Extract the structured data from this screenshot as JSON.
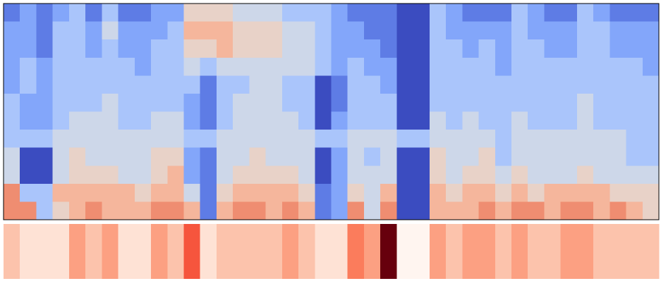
{
  "chart_data": [
    {
      "type": "heatmap",
      "colormap": "coolwarm",
      "zlim": [
        0,
        9
      ],
      "z": [
        [
          1,
          2,
          1,
          2,
          3,
          1,
          3,
          1,
          1,
          2,
          2,
          5,
          5,
          5,
          4,
          4,
          4,
          3,
          3,
          3,
          2,
          1,
          1,
          1,
          0,
          0,
          3,
          2,
          1,
          1,
          1,
          3,
          2,
          1,
          1,
          3,
          2,
          1,
          1,
          1
        ],
        [
          2,
          2,
          1,
          3,
          3,
          2,
          4,
          2,
          2,
          2,
          3,
          6,
          6,
          6,
          5,
          5,
          5,
          4,
          4,
          3,
          2,
          2,
          1,
          1,
          0,
          0,
          3,
          2,
          2,
          2,
          2,
          3,
          2,
          2,
          2,
          3,
          3,
          2,
          2,
          2
        ],
        [
          2,
          2,
          1,
          3,
          3,
          2,
          3,
          2,
          2,
          3,
          3,
          5,
          5,
          6,
          5,
          5,
          5,
          4,
          4,
          3,
          2,
          2,
          2,
          1,
          0,
          0,
          3,
          3,
          2,
          3,
          2,
          3,
          3,
          2,
          2,
          3,
          3,
          2,
          2,
          2
        ],
        [
          2,
          3,
          2,
          3,
          3,
          3,
          3,
          3,
          2,
          3,
          3,
          4,
          3,
          4,
          4,
          4,
          4,
          4,
          4,
          3,
          2,
          3,
          2,
          2,
          0,
          0,
          3,
          3,
          3,
          3,
          2,
          3,
          3,
          3,
          3,
          3,
          3,
          3,
          3,
          2
        ],
        [
          2,
          3,
          2,
          3,
          3,
          3,
          3,
          3,
          3,
          3,
          3,
          3,
          1,
          3,
          3,
          4,
          4,
          3,
          3,
          0,
          1,
          3,
          3,
          2,
          0,
          0,
          3,
          3,
          3,
          3,
          3,
          3,
          3,
          3,
          3,
          3,
          3,
          3,
          3,
          3
        ],
        [
          3,
          2,
          2,
          3,
          3,
          3,
          4,
          3,
          3,
          3,
          3,
          2,
          1,
          3,
          4,
          4,
          4,
          3,
          3,
          0,
          1,
          3,
          3,
          3,
          0,
          0,
          3,
          3,
          3,
          3,
          3,
          3,
          3,
          3,
          3,
          4,
          3,
          3,
          3,
          3
        ],
        [
          3,
          2,
          2,
          3,
          4,
          4,
          4,
          3,
          3,
          4,
          4,
          2,
          1,
          3,
          4,
          4,
          4,
          4,
          3,
          0,
          2,
          3,
          3,
          3,
          0,
          0,
          4,
          3,
          4,
          3,
          3,
          4,
          3,
          3,
          3,
          4,
          3,
          3,
          3,
          3
        ],
        [
          3,
          3,
          3,
          4,
          4,
          4,
          4,
          4,
          4,
          4,
          4,
          3,
          3,
          4,
          4,
          4,
          4,
          4,
          4,
          3,
          3,
          4,
          4,
          4,
          3,
          3,
          4,
          4,
          4,
          4,
          3,
          4,
          4,
          4,
          4,
          4,
          4,
          4,
          3,
          3
        ],
        [
          4,
          0,
          0,
          4,
          5,
          4,
          4,
          4,
          4,
          5,
          5,
          2,
          1,
          4,
          4,
          5,
          4,
          4,
          4,
          0,
          2,
          4,
          3,
          4,
          0,
          0,
          5,
          4,
          4,
          5,
          3,
          4,
          4,
          4,
          4,
          4,
          4,
          4,
          3,
          3
        ],
        [
          4,
          0,
          0,
          4,
          5,
          5,
          5,
          4,
          4,
          5,
          6,
          2,
          1,
          4,
          5,
          5,
          5,
          5,
          4,
          0,
          2,
          4,
          4,
          4,
          0,
          0,
          5,
          4,
          5,
          5,
          4,
          5,
          4,
          4,
          4,
          5,
          4,
          4,
          4,
          4
        ],
        [
          7,
          3,
          3,
          6,
          6,
          6,
          6,
          6,
          5,
          6,
          6,
          4,
          1,
          5,
          6,
          6,
          6,
          6,
          5,
          1,
          2,
          5,
          4,
          6,
          0,
          0,
          6,
          5,
          6,
          6,
          5,
          6,
          5,
          6,
          6,
          6,
          6,
          5,
          5,
          5
        ],
        [
          7,
          7,
          3,
          5,
          6,
          7,
          6,
          6,
          6,
          7,
          7,
          6,
          1,
          6,
          7,
          7,
          6,
          7,
          6,
          1,
          2,
          7,
          4,
          7,
          0,
          0,
          6,
          6,
          6,
          7,
          6,
          7,
          7,
          6,
          7,
          7,
          6,
          7,
          6,
          5
        ]
      ]
    },
    {
      "type": "strip",
      "colormap": "reds",
      "zlim": [
        0,
        9
      ],
      "values": [
        2,
        1,
        1,
        1,
        3,
        2,
        3,
        1,
        1,
        3,
        2,
        5,
        1,
        2,
        2,
        2,
        2,
        3,
        2,
        1,
        1,
        4,
        3,
        9,
        0,
        0,
        3,
        2,
        3,
        3,
        2,
        3,
        2,
        2,
        3,
        3,
        2,
        2,
        2,
        2
      ]
    }
  ]
}
